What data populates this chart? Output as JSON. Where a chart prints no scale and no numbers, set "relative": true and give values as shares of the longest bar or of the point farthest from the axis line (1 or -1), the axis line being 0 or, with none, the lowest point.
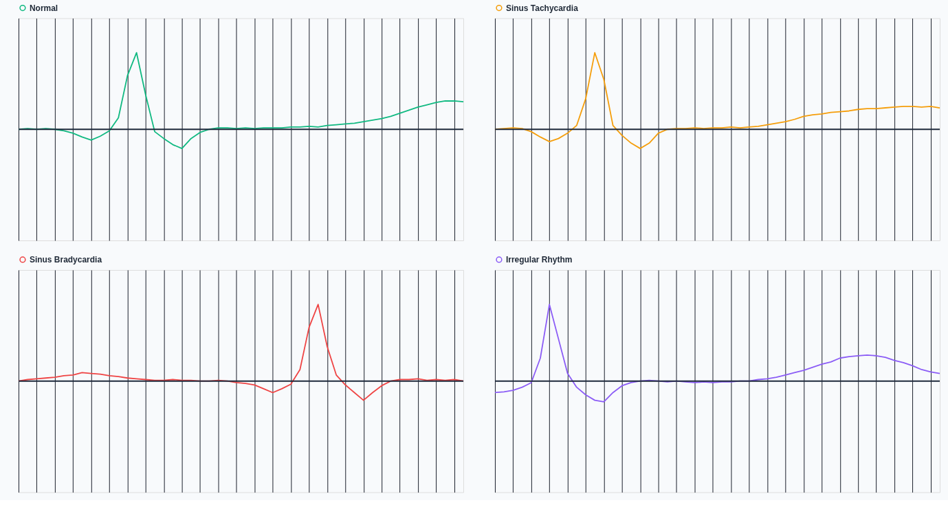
{
  "chart_data": [
    {
      "type": "line",
      "relative": true,
      "grid": true,
      "legend": "top left",
      "tick_labels": false,
      "marker": "none",
      "line_style": "solid",
      "categories": [
        null,
        null,
        null,
        null,
        null,
        null,
        null,
        null,
        null,
        null,
        null,
        null,
        null,
        null,
        null,
        null,
        null,
        null,
        null,
        null,
        null,
        null,
        null,
        null,
        null,
        null,
        null,
        null,
        null,
        null,
        null,
        null,
        null,
        null,
        null,
        null,
        null,
        null,
        null,
        null,
        null,
        null,
        null,
        null,
        null,
        null,
        null,
        null,
        null,
        null
      ],
      "series": [
        {
          "name": "Normal",
          "color": "#10b981",
          "values": [
            0,
            0.01,
            0,
            0.01,
            0,
            -0.02,
            -0.05,
            -0.1,
            -0.14,
            -0.09,
            -0.02,
            0.15,
            0.7,
            1.0,
            0.45,
            -0.03,
            -0.12,
            -0.2,
            -0.25,
            -0.12,
            -0.04,
            0,
            0.02,
            0.02,
            0.01,
            0.02,
            0.01,
            0.02,
            0.02,
            0.02,
            0.03,
            0.03,
            0.04,
            0.03,
            0.05,
            0.06,
            0.07,
            0.08,
            0.1,
            0.12,
            0.14,
            0.17,
            0.21,
            0.25,
            0.29,
            0.32,
            0.35,
            0.37,
            0.37,
            0.36
          ]
        }
      ],
      "ref_lines": [
        {
          "axis": "y",
          "value": 0,
          "color": "#1e293b"
        }
      ]
    },
    {
      "type": "line",
      "relative": true,
      "grid": true,
      "legend": "top left",
      "tick_labels": false,
      "marker": "none",
      "line_style": "solid",
      "categories": [
        null,
        null,
        null,
        null,
        null,
        null,
        null,
        null,
        null,
        null,
        null,
        null,
        null,
        null,
        null,
        null,
        null,
        null,
        null,
        null,
        null,
        null,
        null,
        null,
        null,
        null,
        null,
        null,
        null,
        null,
        null,
        null,
        null,
        null,
        null,
        null,
        null,
        null,
        null,
        null,
        null,
        null,
        null,
        null,
        null,
        null,
        null,
        null,
        null,
        null
      ],
      "series": [
        {
          "name": "Sinus Tachycardia",
          "color": "#f59e0b",
          "values": [
            0,
            0.01,
            0.02,
            0.01,
            -0.03,
            -0.1,
            -0.16,
            -0.12,
            -0.05,
            0.05,
            0.4,
            1.0,
            0.65,
            0.05,
            -0.08,
            -0.18,
            -0.25,
            -0.18,
            -0.05,
            0,
            0.01,
            0.01,
            0.02,
            0.01,
            0.02,
            0.02,
            0.03,
            0.02,
            0.03,
            0.04,
            0.06,
            0.08,
            0.1,
            0.13,
            0.17,
            0.19,
            0.2,
            0.22,
            0.23,
            0.24,
            0.26,
            0.27,
            0.27,
            0.28,
            0.29,
            0.3,
            0.3,
            0.29,
            0.3,
            0.28
          ]
        }
      ],
      "ref_lines": [
        {
          "axis": "y",
          "value": 0,
          "color": "#1e293b"
        }
      ]
    },
    {
      "type": "line",
      "relative": true,
      "grid": true,
      "legend": "top left",
      "tick_labels": false,
      "marker": "none",
      "line_style": "solid",
      "categories": [
        null,
        null,
        null,
        null,
        null,
        null,
        null,
        null,
        null,
        null,
        null,
        null,
        null,
        null,
        null,
        null,
        null,
        null,
        null,
        null,
        null,
        null,
        null,
        null,
        null,
        null,
        null,
        null,
        null,
        null,
        null,
        null,
        null,
        null,
        null,
        null,
        null,
        null,
        null,
        null,
        null,
        null,
        null,
        null,
        null,
        null,
        null,
        null,
        null,
        null
      ],
      "series": [
        {
          "name": "Sinus Bradycardia",
          "color": "#ef4444",
          "values": [
            0,
            0.02,
            0.03,
            0.04,
            0.05,
            0.07,
            0.08,
            0.11,
            0.1,
            0.09,
            0.07,
            0.06,
            0.04,
            0.03,
            0.02,
            0.01,
            0.01,
            0.02,
            0.01,
            0.01,
            0,
            0,
            0.01,
            0,
            -0.02,
            -0.03,
            -0.05,
            -0.1,
            -0.15,
            -0.1,
            -0.04,
            0.15,
            0.7,
            1.0,
            0.45,
            0.08,
            -0.05,
            -0.15,
            -0.25,
            -0.15,
            -0.06,
            0,
            0.02,
            0.02,
            0.03,
            0.01,
            0.02,
            0.01,
            0.02,
            0
          ]
        }
      ],
      "ref_lines": [
        {
          "axis": "y",
          "value": 0,
          "color": "#1e293b"
        }
      ]
    },
    {
      "type": "line",
      "relative": true,
      "grid": true,
      "legend": "top left",
      "tick_labels": false,
      "marker": "none",
      "line_style": "solid",
      "categories": [
        null,
        null,
        null,
        null,
        null,
        null,
        null,
        null,
        null,
        null,
        null,
        null,
        null,
        null,
        null,
        null,
        null,
        null,
        null,
        null,
        null,
        null,
        null,
        null,
        null,
        null,
        null,
        null,
        null,
        null,
        null,
        null,
        null,
        null,
        null,
        null,
        null,
        null,
        null,
        null,
        null,
        null,
        null,
        null,
        null,
        null,
        null,
        null,
        null,
        null
      ],
      "series": [
        {
          "name": "Irregular Rhythm",
          "color": "#8b5cf6",
          "values": [
            -0.15,
            -0.14,
            -0.12,
            -0.08,
            -0.02,
            0.3,
            1.0,
            0.55,
            0.1,
            -0.08,
            -0.18,
            -0.25,
            -0.27,
            -0.15,
            -0.06,
            -0.02,
            0,
            0.01,
            0,
            -0.01,
            0,
            -0.01,
            -0.02,
            -0.01,
            -0.02,
            -0.01,
            -0.01,
            0,
            0,
            0.02,
            0.03,
            0.05,
            0.08,
            0.11,
            0.14,
            0.18,
            0.22,
            0.25,
            0.3,
            0.32,
            0.33,
            0.34,
            0.33,
            0.31,
            0.27,
            0.24,
            0.2,
            0.15,
            0.12,
            0.1
          ]
        }
      ],
      "ref_lines": [
        {
          "axis": "y",
          "value": 0,
          "color": "#1e293b"
        }
      ]
    }
  ]
}
